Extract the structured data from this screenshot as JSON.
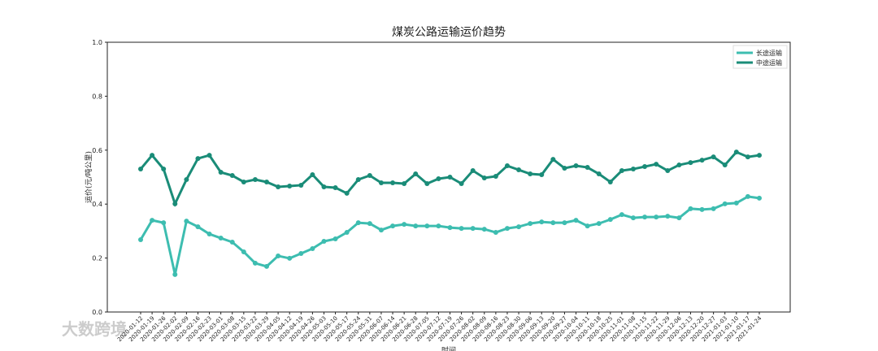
{
  "chart_data": {
    "type": "line",
    "title": "煤炭公路运输运价趋势",
    "y_label": "运价(元/吨公里)",
    "x_label": "时间",
    "categories": [
      "2020-01-12",
      "2020-01-19",
      "2020-01-26",
      "2020-02-02",
      "2020-02-09",
      "2020-02-16",
      "2020-02-23",
      "2020-03-01",
      "2020-03-08",
      "2020-03-15",
      "2020-03-22",
      "2020-03-29",
      "2020-04-05",
      "2020-04-12",
      "2020-04-19",
      "2020-04-26",
      "2020-05-03",
      "2020-05-10",
      "2020-05-17",
      "2020-05-24",
      "2020-05-31",
      "2020-06-07",
      "2020-06-14",
      "2020-06-21",
      "2020-06-28",
      "2020-07-05",
      "2020-07-12",
      "2020-07-19",
      "2020-07-26",
      "2020-08-02",
      "2020-08-09",
      "2020-08-16",
      "2020-08-23",
      "2020-08-30",
      "2020-09-06",
      "2020-09-13",
      "2020-09-20",
      "2020-09-27",
      "2020-10-04",
      "2020-10-11",
      "2020-10-18",
      "2020-10-25",
      "2020-11-01",
      "2020-11-08",
      "2020-11-15",
      "2020-11-22",
      "2020-11-29",
      "2020-12-06",
      "2020-12-13",
      "2020-12-20",
      "2020-12-27",
      "2021-01-03",
      "2021-01-10",
      "2021-01-17",
      "2021-01-24"
    ],
    "series": [
      {
        "name": "长途运输",
        "color": "#3dbdb0",
        "values": [
          0.268,
          0.34,
          0.331,
          0.139,
          0.337,
          0.316,
          0.289,
          0.274,
          0.259,
          0.223,
          0.181,
          0.169,
          0.208,
          0.199,
          0.217,
          0.235,
          0.262,
          0.271,
          0.295,
          0.331,
          0.328,
          0.304,
          0.319,
          0.325,
          0.319,
          0.319,
          0.319,
          0.313,
          0.31,
          0.31,
          0.307,
          0.295,
          0.31,
          0.316,
          0.328,
          0.334,
          0.331,
          0.331,
          0.34,
          0.319,
          0.328,
          0.343,
          0.361,
          0.349,
          0.352,
          0.352,
          0.355,
          0.349,
          0.383,
          0.38,
          0.383,
          0.401,
          0.404,
          0.428,
          0.422
        ]
      },
      {
        "name": "中途运输",
        "color": "#1a8c78",
        "values": [
          0.53,
          0.581,
          0.53,
          0.401,
          0.491,
          0.569,
          0.581,
          0.518,
          0.506,
          0.482,
          0.491,
          0.482,
          0.464,
          0.467,
          0.47,
          0.509,
          0.464,
          0.461,
          0.44,
          0.491,
          0.506,
          0.479,
          0.479,
          0.476,
          0.512,
          0.476,
          0.494,
          0.5,
          0.476,
          0.524,
          0.497,
          0.503,
          0.542,
          0.527,
          0.512,
          0.509,
          0.566,
          0.533,
          0.542,
          0.536,
          0.512,
          0.482,
          0.524,
          0.53,
          0.539,
          0.548,
          0.524,
          0.545,
          0.554,
          0.563,
          0.575,
          0.545,
          0.593,
          0.575,
          0.581
        ]
      }
    ],
    "ylim": [
      0,
      1
    ],
    "yticks": [
      {
        "value": 0,
        "label": "0.0"
      },
      0.2,
      0.4,
      0.6,
      0.8,
      {
        "value": 1,
        "label": "1.0"
      }
    ],
    "legend": "upper right"
  },
  "watermark": "大数跨境"
}
